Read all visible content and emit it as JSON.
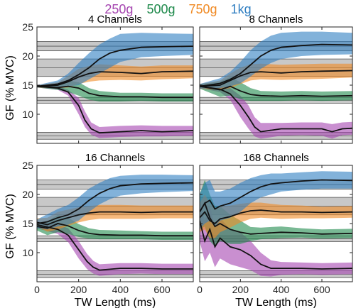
{
  "legend": [
    {
      "label": "250g",
      "color": "#a545b0"
    },
    {
      "label": "500g",
      "color": "#1f8a4c"
    },
    {
      "label": "750g",
      "color": "#f08a24"
    },
    {
      "label": "1kg",
      "color": "#2f7ec1"
    }
  ],
  "chart_data": [
    {
      "type": "line",
      "title": "4 Channels",
      "xlabel": "",
      "ylabel": "GF (% MVC)",
      "xlim": [
        0,
        750
      ],
      "ylim": [
        5,
        25
      ],
      "xticks": [],
      "yticks": [
        "10",
        "15",
        "20",
        "25"
      ],
      "reference_bands": [
        {
          "center": 21.7,
          "half_width": 0.8
        },
        {
          "center": 18.0,
          "half_width": 1.5
        },
        {
          "center": 12.4,
          "half_width": 0.5
        },
        {
          "center": 6.3,
          "half_width": 0.6
        }
      ],
      "series": [
        {
          "name": "250g",
          "color": "#a545b0",
          "x": [
            0,
            100,
            150,
            200,
            230,
            260,
            300,
            400,
            500,
            600,
            750
          ],
          "mean": [
            14.8,
            14.5,
            13.8,
            11.5,
            9.0,
            7.5,
            6.8,
            7.0,
            7.2,
            7.0,
            7.2
          ],
          "lower": [
            14.6,
            14.2,
            13.2,
            10.0,
            7.8,
            6.5,
            5.9,
            6.1,
            6.2,
            6.2,
            6.3
          ],
          "upper": [
            15.0,
            14.8,
            14.2,
            12.8,
            10.5,
            8.6,
            7.8,
            8.0,
            8.1,
            8.0,
            8.0
          ]
        },
        {
          "name": "500g",
          "color": "#1f8a4c",
          "x": [
            0,
            100,
            150,
            200,
            250,
            300,
            400,
            500,
            600,
            750
          ],
          "mean": [
            14.8,
            14.6,
            14.8,
            14.5,
            13.6,
            13.2,
            13.0,
            13.0,
            12.9,
            12.9
          ],
          "lower": [
            14.6,
            14.2,
            13.8,
            13.2,
            12.5,
            12.2,
            12.2,
            12.3,
            12.2,
            12.2
          ],
          "upper": [
            15.0,
            15.0,
            15.8,
            15.5,
            14.5,
            14.0,
            13.7,
            13.7,
            13.6,
            13.6
          ]
        },
        {
          "name": "750g",
          "color": "#f08a24",
          "x": [
            0,
            100,
            150,
            200,
            250,
            300,
            400,
            500,
            600,
            750
          ],
          "mean": [
            14.8,
            15.0,
            15.6,
            16.4,
            17.0,
            17.3,
            17.2,
            17.0,
            17.3,
            17.4
          ],
          "lower": [
            14.6,
            14.5,
            14.6,
            15.2,
            15.6,
            15.8,
            15.9,
            15.8,
            16.0,
            16.2
          ],
          "upper": [
            15.0,
            15.5,
            16.6,
            17.8,
            18.3,
            18.6,
            18.4,
            18.2,
            18.4,
            18.4
          ]
        },
        {
          "name": "1kg",
          "color": "#2f7ec1",
          "x": [
            0,
            100,
            150,
            200,
            250,
            300,
            350,
            400,
            500,
            600,
            750
          ],
          "mean": [
            14.8,
            15.2,
            15.8,
            16.8,
            18.0,
            19.5,
            20.5,
            21.0,
            21.5,
            21.6,
            21.7
          ],
          "lower": [
            14.6,
            14.7,
            14.8,
            15.0,
            16.0,
            17.0,
            18.0,
            19.0,
            19.8,
            20.0,
            20.2
          ],
          "upper": [
            15.0,
            15.8,
            17.0,
            18.8,
            20.5,
            22.0,
            23.0,
            23.8,
            24.0,
            23.9,
            23.8
          ]
        }
      ]
    },
    {
      "type": "line",
      "title": "8 Channels",
      "xlabel": "",
      "ylabel": "",
      "xlim": [
        0,
        750
      ],
      "ylim": [
        5,
        25
      ],
      "xticks": [],
      "yticks": [],
      "reference_bands": [
        {
          "center": 21.7,
          "half_width": 0.8
        },
        {
          "center": 18.0,
          "half_width": 1.5
        },
        {
          "center": 12.4,
          "half_width": 0.5
        },
        {
          "center": 6.3,
          "half_width": 0.6
        }
      ],
      "series": [
        {
          "name": "250g",
          "color": "#a545b0",
          "x": [
            0,
            100,
            150,
            200,
            240,
            270,
            300,
            400,
            500,
            600,
            650,
            700,
            750
          ],
          "mean": [
            14.8,
            14.3,
            13.5,
            11.5,
            9.5,
            7.8,
            7.0,
            7.5,
            7.5,
            7.5,
            7.0,
            7.5,
            7.6
          ],
          "lower": [
            14.5,
            13.8,
            12.5,
            9.5,
            7.5,
            6.2,
            5.8,
            6.3,
            6.4,
            6.3,
            5.8,
            6.4,
            6.5
          ],
          "upper": [
            15.1,
            14.8,
            14.5,
            13.2,
            11.5,
            9.5,
            8.5,
            8.5,
            8.6,
            8.6,
            8.3,
            8.6,
            8.7
          ]
        },
        {
          "name": "500g",
          "color": "#1f8a4c",
          "x": [
            0,
            100,
            150,
            200,
            250,
            300,
            400,
            500,
            600,
            750
          ],
          "mean": [
            14.8,
            14.2,
            14.8,
            14.0,
            13.4,
            13.2,
            13.1,
            13.2,
            13.1,
            13.2
          ],
          "lower": [
            14.4,
            13.0,
            13.2,
            12.6,
            12.3,
            12.3,
            12.3,
            12.4,
            12.3,
            12.4
          ],
          "upper": [
            15.2,
            15.6,
            16.4,
            15.5,
            14.5,
            14.0,
            13.9,
            14.0,
            13.9,
            14.0
          ]
        },
        {
          "name": "750g",
          "color": "#f08a24",
          "x": [
            0,
            100,
            150,
            200,
            250,
            300,
            400,
            500,
            600,
            750
          ],
          "mean": [
            14.8,
            15.0,
            15.8,
            16.6,
            17.2,
            17.3,
            17.1,
            17.3,
            17.4,
            17.5
          ],
          "lower": [
            14.4,
            14.2,
            14.5,
            15.2,
            15.8,
            16.0,
            15.9,
            16.0,
            16.1,
            16.3
          ],
          "upper": [
            15.2,
            15.8,
            17.0,
            18.0,
            18.6,
            18.7,
            18.5,
            18.6,
            18.7,
            18.7
          ]
        },
        {
          "name": "1kg",
          "color": "#2f7ec1",
          "x": [
            0,
            100,
            150,
            200,
            250,
            300,
            350,
            400,
            500,
            600,
            750
          ],
          "mean": [
            14.8,
            15.3,
            16.0,
            17.0,
            18.5,
            20.0,
            21.0,
            21.5,
            21.8,
            22.0,
            21.9
          ],
          "lower": [
            14.4,
            14.5,
            14.8,
            15.3,
            16.5,
            17.8,
            18.8,
            19.5,
            20.0,
            20.2,
            20.3
          ],
          "upper": [
            15.2,
            16.2,
            17.3,
            19.0,
            21.0,
            22.5,
            23.5,
            24.0,
            24.2,
            24.2,
            24.0
          ]
        }
      ]
    },
    {
      "type": "line",
      "title": "16 Channels",
      "xlabel": "TW Length (ms)",
      "ylabel": "GF (% MVC)",
      "xlim": [
        0,
        750
      ],
      "ylim": [
        5,
        25
      ],
      "xticks": [
        "0",
        "200",
        "400",
        "600"
      ],
      "yticks": [
        "10",
        "15",
        "20",
        "25"
      ],
      "reference_bands": [
        {
          "center": 21.7,
          "half_width": 0.8
        },
        {
          "center": 18.0,
          "half_width": 1.5
        },
        {
          "center": 12.4,
          "half_width": 0.5
        },
        {
          "center": 6.3,
          "half_width": 0.6
        }
      ],
      "series": [
        {
          "name": "250g",
          "color": "#a545b0",
          "x": [
            0,
            100,
            150,
            200,
            240,
            270,
            300,
            400,
            500,
            600,
            750
          ],
          "mean": [
            14.8,
            14.0,
            13.0,
            10.5,
            8.5,
            7.5,
            7.0,
            7.3,
            7.3,
            7.2,
            7.2
          ],
          "lower": [
            14.2,
            13.2,
            11.8,
            9.0,
            7.2,
            6.4,
            6.0,
            6.3,
            6.4,
            6.3,
            6.3
          ],
          "upper": [
            15.4,
            14.8,
            14.2,
            12.0,
            9.8,
            8.6,
            8.0,
            8.2,
            8.2,
            8.1,
            8.1
          ]
        },
        {
          "name": "500g",
          "color": "#1f8a4c",
          "x": [
            0,
            50,
            100,
            150,
            200,
            250,
            300,
            400,
            500,
            600,
            750
          ],
          "mean": [
            14.5,
            14.2,
            15.0,
            14.6,
            13.8,
            13.3,
            13.1,
            13.0,
            13.0,
            12.9,
            12.9
          ],
          "lower": [
            13.8,
            13.0,
            13.5,
            13.2,
            12.7,
            12.4,
            12.3,
            12.3,
            12.3,
            12.2,
            12.2
          ],
          "upper": [
            15.2,
            15.4,
            16.5,
            16.0,
            14.9,
            14.2,
            13.9,
            13.8,
            13.7,
            13.6,
            13.6
          ]
        },
        {
          "name": "750g",
          "color": "#f08a24",
          "x": [
            0,
            50,
            100,
            150,
            200,
            250,
            300,
            400,
            500,
            600,
            750
          ],
          "mean": [
            15.2,
            14.8,
            15.5,
            16.0,
            16.5,
            16.8,
            17.0,
            17.0,
            16.9,
            17.0,
            17.0
          ],
          "lower": [
            14.5,
            13.6,
            14.0,
            14.6,
            15.2,
            15.6,
            15.8,
            15.8,
            15.8,
            15.9,
            15.9
          ],
          "upper": [
            15.9,
            16.0,
            17.0,
            17.4,
            17.8,
            18.0,
            18.2,
            18.2,
            18.1,
            18.1,
            18.1
          ]
        },
        {
          "name": "1kg",
          "color": "#2f7ec1",
          "x": [
            0,
            50,
            100,
            150,
            200,
            250,
            300,
            350,
            400,
            500,
            600,
            750
          ],
          "mean": [
            15.0,
            15.3,
            16.0,
            16.5,
            17.5,
            19.0,
            20.2,
            21.0,
            21.5,
            21.8,
            21.9,
            22.0
          ],
          "lower": [
            14.3,
            14.0,
            14.5,
            14.8,
            15.5,
            17.0,
            18.3,
            19.2,
            19.8,
            20.2,
            20.4,
            20.6
          ],
          "upper": [
            15.7,
            16.6,
            17.5,
            18.2,
            19.5,
            21.0,
            22.0,
            22.8,
            23.2,
            23.4,
            23.4,
            23.3
          ]
        }
      ]
    },
    {
      "type": "line",
      "title": "168 Channels",
      "xlabel": "TW Length (ms)",
      "ylabel": "",
      "xlim": [
        0,
        750
      ],
      "ylim": [
        5,
        25
      ],
      "xticks": [
        "0",
        "200",
        "400",
        "600"
      ],
      "yticks": [],
      "reference_bands": [
        {
          "center": 21.7,
          "half_width": 0.8
        },
        {
          "center": 18.0,
          "half_width": 1.5
        },
        {
          "center": 12.4,
          "half_width": 0.5
        },
        {
          "center": 6.3,
          "half_width": 0.6
        }
      ],
      "series": [
        {
          "name": "250g",
          "color": "#a545b0",
          "x": [
            0,
            25,
            50,
            75,
            100,
            150,
            200,
            250,
            300,
            350,
            400,
            500,
            600,
            750
          ],
          "mean": [
            15.5,
            12.0,
            14.0,
            11.0,
            12.5,
            11.0,
            10.5,
            9.5,
            8.0,
            7.3,
            7.3,
            7.3,
            7.2,
            7.3
          ],
          "lower": [
            12.0,
            8.5,
            10.0,
            7.5,
            9.0,
            8.0,
            7.5,
            7.0,
            6.0,
            5.9,
            6.2,
            6.3,
            6.2,
            6.3
          ],
          "upper": [
            19.0,
            15.5,
            18.0,
            14.5,
            16.0,
            14.0,
            13.5,
            12.0,
            10.0,
            8.7,
            8.4,
            8.3,
            8.2,
            8.3
          ]
        },
        {
          "name": "500g",
          "color": "#1f8a4c",
          "x": [
            0,
            25,
            50,
            75,
            100,
            150,
            200,
            250,
            300,
            400,
            500,
            600,
            750
          ],
          "mean": [
            17.0,
            18.5,
            16.0,
            14.5,
            15.0,
            14.0,
            13.5,
            13.2,
            13.3,
            13.5,
            13.4,
            13.2,
            13.3
          ],
          "lower": [
            14.0,
            14.5,
            12.0,
            11.0,
            12.0,
            11.5,
            11.5,
            12.0,
            12.3,
            12.5,
            12.6,
            12.4,
            12.5
          ],
          "upper": [
            20.0,
            22.5,
            20.0,
            18.0,
            18.0,
            16.5,
            15.5,
            14.4,
            14.3,
            14.5,
            14.2,
            14.0,
            14.1
          ]
        },
        {
          "name": "750g",
          "color": "#f08a24",
          "x": [
            0,
            25,
            50,
            75,
            100,
            150,
            200,
            250,
            300,
            400,
            500,
            600,
            750
          ],
          "mean": [
            16.0,
            17.0,
            15.5,
            15.0,
            15.8,
            16.2,
            16.8,
            17.2,
            17.3,
            17.0,
            17.0,
            16.9,
            17.0
          ],
          "lower": [
            13.5,
            14.0,
            12.5,
            12.5,
            13.5,
            14.3,
            15.2,
            15.8,
            16.0,
            15.8,
            15.9,
            15.9,
            16.0
          ],
          "upper": [
            18.5,
            20.0,
            18.5,
            17.5,
            18.0,
            18.1,
            18.4,
            18.6,
            18.6,
            18.2,
            18.1,
            17.9,
            18.0
          ]
        },
        {
          "name": "1kg",
          "color": "#2f7ec1",
          "x": [
            0,
            25,
            50,
            75,
            100,
            150,
            200,
            250,
            300,
            350,
            400,
            500,
            600,
            750
          ],
          "mean": [
            17.0,
            18.5,
            19.0,
            17.5,
            18.0,
            18.5,
            19.5,
            20.5,
            21.3,
            21.8,
            22.0,
            22.3,
            22.5,
            22.4
          ],
          "lower": [
            14.0,
            15.0,
            15.5,
            14.5,
            15.5,
            16.0,
            17.0,
            18.5,
            19.5,
            20.0,
            20.5,
            20.8,
            21.0,
            21.0
          ],
          "upper": [
            20.0,
            22.0,
            22.5,
            20.5,
            20.5,
            21.0,
            22.0,
            22.8,
            23.3,
            23.6,
            23.6,
            23.8,
            24.0,
            23.9
          ]
        }
      ]
    }
  ]
}
